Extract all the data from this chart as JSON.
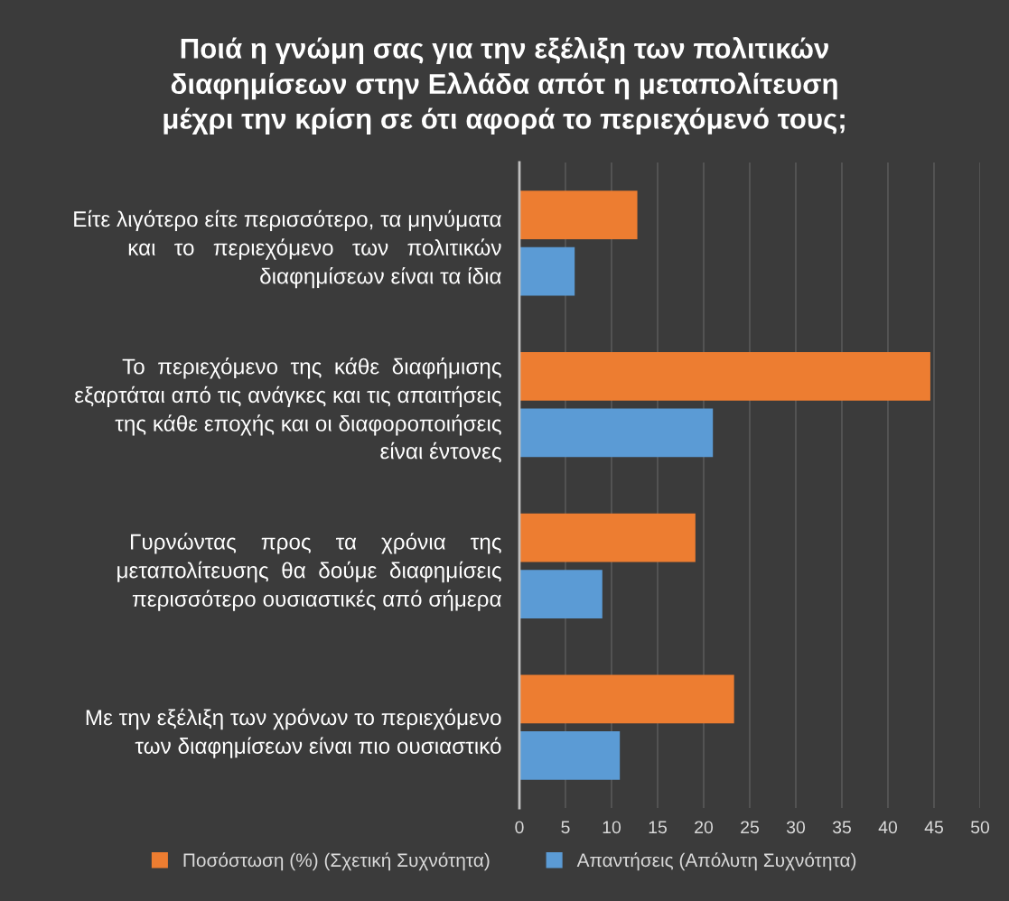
{
  "chart_data": {
    "type": "bar",
    "orientation": "horizontal",
    "title": "Ποιά η γνώμη σας για την εξέλιξη των πολιτικών\nδιαφημίσεων στην Ελλάδα απότ η μεταπολίτευση\nμέχρι την κρίση σε ότι αφορά το περιεχόμενό τους;",
    "categories": [
      "Είτε λιγότερο είτε περισσότερο, τα μηνύματα\nκαι   το   περιεχόμενο   των   πολιτικών\nδιαφημίσεων είναι τα ίδια",
      "Το  περιεχόμενο  της  κάθε  διαφήμισης\nεξαρτάται από τις ανάγκες και τις απαιτήσεις\nτης κάθε εποχής και οι διαφοροποιήσεις\nείναι έντονες",
      "Γυρνώντας    προς    τα    χρόνια    της\nμεταπολίτευσης  θα  δούμε  διαφημίσεις\nπερισσότερο ουσιαστικές από σήμερα",
      "Με την εξέλιξη των χρόνων το περιεχόμενο\nτων διαφημίσεων είναι πιο ουσιαστικό"
    ],
    "series": [
      {
        "name": "Ποσόστωση (%) (Σχετική Συχνότητα)",
        "color": "#ed7d31",
        "values": [
          12.8,
          44.6,
          19.1,
          23.3
        ]
      },
      {
        "name": "Απαντήσεις (Απόλυτη Συχνότητα)",
        "color": "#5b9bd5",
        "values": [
          6,
          21,
          9,
          10.9
        ]
      }
    ],
    "xlim": [
      0,
      50
    ],
    "xticks": [
      0,
      5,
      10,
      15,
      20,
      25,
      30,
      35,
      40,
      45,
      50
    ],
    "grid": "x",
    "legend": "bottom"
  }
}
